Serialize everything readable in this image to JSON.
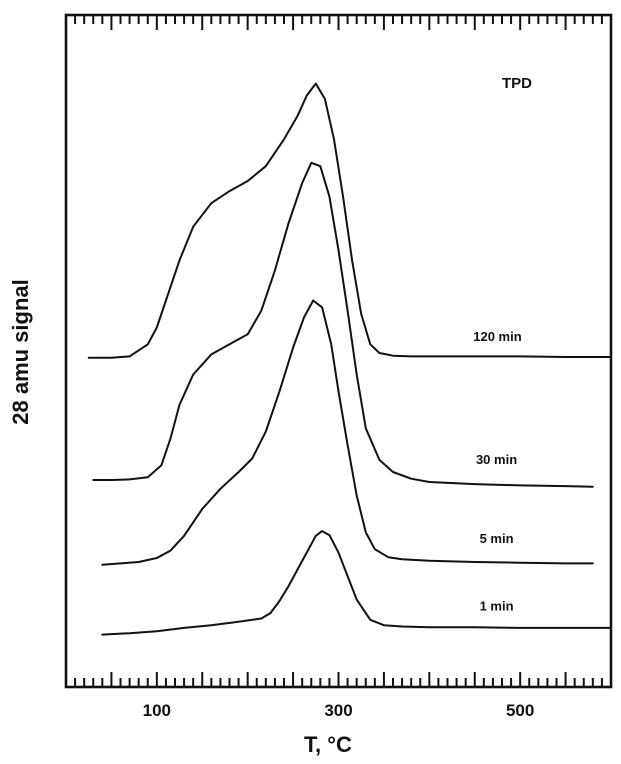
{
  "chart_data": {
    "type": "line",
    "title": "",
    "annotation": "TPD",
    "xlabel": "T, °C",
    "ylabel": "28 amu signal",
    "xlim": [
      0,
      600
    ],
    "ylim": [
      0,
      100
    ],
    "x_ticks": [
      100,
      300,
      500
    ],
    "x_tick_labels": [
      "100",
      "300",
      "500"
    ],
    "grid": false,
    "legend": "none",
    "line_color": "#111111",
    "series": [
      {
        "name": "120 min",
        "x": [
          25,
          50,
          70,
          90,
          100,
          110,
          125,
          140,
          160,
          180,
          200,
          220,
          240,
          255,
          265,
          275,
          285,
          295,
          305,
          315,
          325,
          335,
          345,
          360,
          380,
          400,
          450,
          500,
          550,
          600
        ],
        "y": [
          49.0,
          49.0,
          49.2,
          51.0,
          53.5,
          57.5,
          63.5,
          68.5,
          72.0,
          73.8,
          75.3,
          77.5,
          81.5,
          85.0,
          88.0,
          89.8,
          87.5,
          81.5,
          73.0,
          63.5,
          55.5,
          51.0,
          49.7,
          49.3,
          49.2,
          49.2,
          49.2,
          49.2,
          49.1,
          49.1
        ]
      },
      {
        "name": "30 min",
        "x": [
          30,
          50,
          70,
          90,
          105,
          115,
          125,
          140,
          160,
          180,
          200,
          215,
          230,
          245,
          260,
          270,
          280,
          290,
          300,
          310,
          320,
          330,
          345,
          360,
          380,
          400,
          450,
          500,
          550,
          580
        ],
        "y": [
          30.8,
          30.8,
          30.9,
          31.2,
          33.0,
          37.0,
          42.0,
          46.5,
          49.5,
          51.0,
          52.5,
          56.0,
          62.0,
          69.0,
          75.0,
          78.0,
          77.5,
          73.0,
          65.0,
          56.0,
          46.5,
          38.5,
          33.8,
          32.0,
          31.0,
          30.5,
          30.2,
          30.0,
          29.9,
          29.8
        ]
      },
      {
        "name": "5 min",
        "x": [
          40,
          60,
          80,
          100,
          115,
          130,
          150,
          170,
          190,
          205,
          220,
          235,
          250,
          262,
          272,
          282,
          292,
          300,
          310,
          320,
          330,
          340,
          355,
          370,
          400,
          450,
          500,
          550,
          580
        ],
        "y": [
          18.2,
          18.4,
          18.6,
          19.2,
          20.3,
          22.5,
          26.5,
          29.5,
          32.0,
          34.0,
          38.0,
          44.0,
          50.5,
          55.0,
          57.5,
          56.5,
          51.0,
          44.0,
          36.0,
          28.5,
          23.0,
          20.5,
          19.3,
          19.0,
          18.8,
          18.6,
          18.5,
          18.4,
          18.4
        ]
      },
      {
        "name": "1 min",
        "x": [
          40,
          70,
          100,
          130,
          160,
          190,
          215,
          225,
          235,
          245,
          255,
          265,
          275,
          282,
          290,
          300,
          310,
          320,
          335,
          350,
          370,
          400,
          450,
          500,
          550,
          600
        ],
        "y": [
          7.8,
          8.0,
          8.3,
          8.8,
          9.2,
          9.7,
          10.2,
          11.0,
          12.8,
          15.0,
          17.5,
          20.0,
          22.5,
          23.2,
          22.6,
          20.0,
          16.5,
          13.0,
          10.0,
          9.2,
          9.0,
          8.9,
          8.9,
          8.8,
          8.8,
          8.8
        ]
      }
    ],
    "series_label_positions": [
      {
        "name": "120 min",
        "x": 475,
        "y": 51.5
      },
      {
        "name": "30 min",
        "x": 474,
        "y": 33.2
      },
      {
        "name": "5 min",
        "x": 474,
        "y": 21.4
      },
      {
        "name": "1 min",
        "x": 474,
        "y": 11.4
      }
    ]
  }
}
